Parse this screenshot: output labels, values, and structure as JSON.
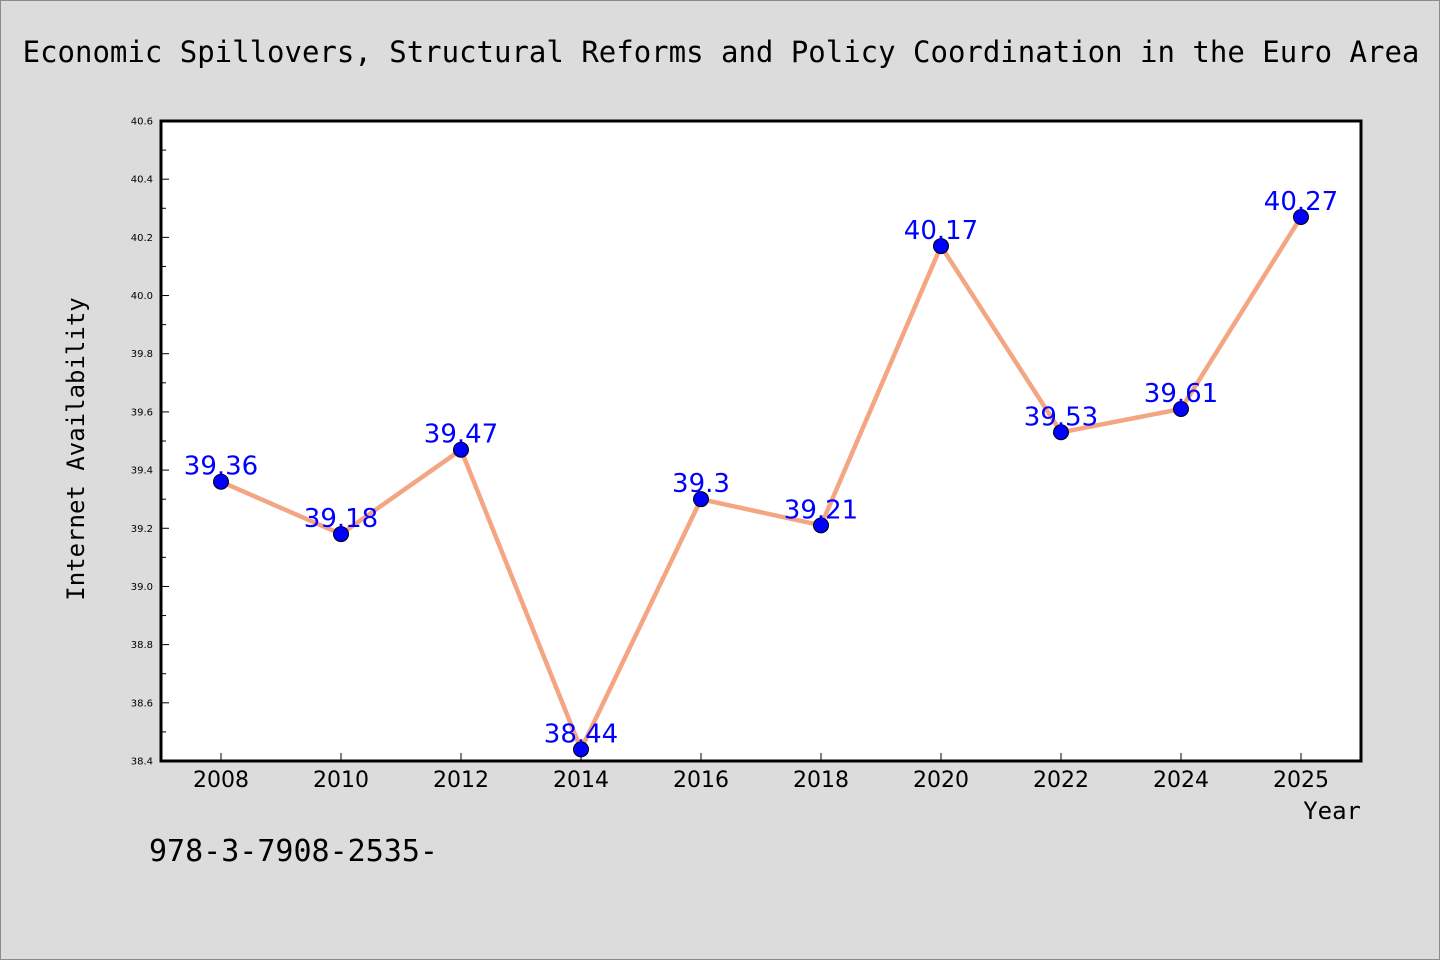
{
  "chart_data": {
    "type": "line",
    "title": "Economic Spillovers, Structural Reforms and Policy Coordination in the Euro Area",
    "xlabel": "Year",
    "ylabel": "Internet Availability",
    "categories": [
      "2008",
      "2010",
      "2012",
      "2014",
      "2016",
      "2018",
      "2020",
      "2022",
      "2024",
      "2025"
    ],
    "series": [
      {
        "values": [
          39.36,
          39.18,
          39.47,
          38.44,
          39.3,
          39.21,
          40.17,
          39.53,
          39.61,
          40.27
        ],
        "labels": [
          "39.36",
          "39.18",
          "39.47",
          "38.44",
          "39.3",
          "39.21",
          "40.17",
          "39.53",
          "39.61",
          "40.27"
        ]
      }
    ],
    "ylim": [
      38.4,
      40.6
    ],
    "yticks": [
      "38.4",
      "38.6",
      "38.8",
      "39.0",
      "39.2",
      "39.4",
      "39.6",
      "39.8",
      "40.0",
      "40.2",
      "40.4",
      "40.6"
    ],
    "grid": false,
    "legend": "none",
    "line_color": "#f4a582",
    "marker_color": "#0000ff",
    "label_color": "#0000ff"
  },
  "footer_text": "978-3-7908-2535-"
}
